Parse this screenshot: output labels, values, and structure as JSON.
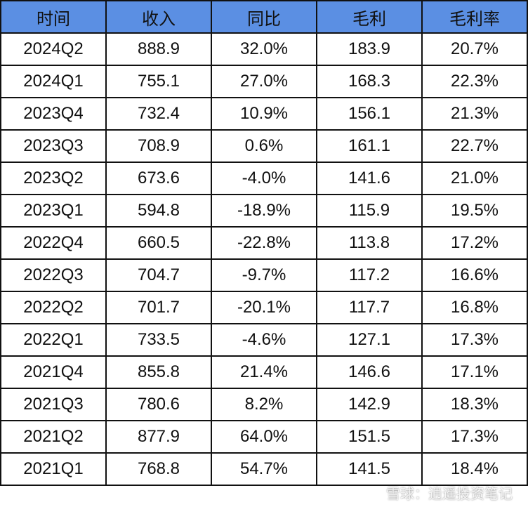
{
  "table": {
    "header": [
      "时间",
      "收入",
      "同比",
      "毛利",
      "毛利率"
    ],
    "rows": [
      [
        "2024Q2",
        "888.9",
        "32.0%",
        "183.9",
        "20.7%"
      ],
      [
        "2024Q1",
        "755.1",
        "27.0%",
        "168.3",
        "22.3%"
      ],
      [
        "2023Q4",
        "732.4",
        "10.9%",
        "156.1",
        "21.3%"
      ],
      [
        "2023Q3",
        "708.9",
        "0.6%",
        "161.1",
        "22.7%"
      ],
      [
        "2023Q2",
        "673.6",
        "-4.0%",
        "141.6",
        "21.0%"
      ],
      [
        "2023Q1",
        "594.8",
        "-18.9%",
        "115.9",
        "19.5%"
      ],
      [
        "2022Q4",
        "660.5",
        "-22.8%",
        "113.8",
        "17.2%"
      ],
      [
        "2022Q3",
        "704.7",
        "-9.7%",
        "117.2",
        "16.6%"
      ],
      [
        "2022Q2",
        "701.7",
        "-20.1%",
        "117.7",
        "16.8%"
      ],
      [
        "2022Q1",
        "733.5",
        "-4.6%",
        "127.1",
        "17.3%"
      ],
      [
        "2021Q4",
        "855.8",
        "21.4%",
        "146.6",
        "17.1%"
      ],
      [
        "2021Q3",
        "780.6",
        "8.2%",
        "142.9",
        "18.3%"
      ],
      [
        "2021Q2",
        "877.9",
        "64.0%",
        "151.5",
        "17.3%"
      ],
      [
        "2021Q1",
        "768.8",
        "54.7%",
        "141.5",
        "18.4%"
      ]
    ]
  },
  "watermark": "雪球：逍遥投资笔记"
}
